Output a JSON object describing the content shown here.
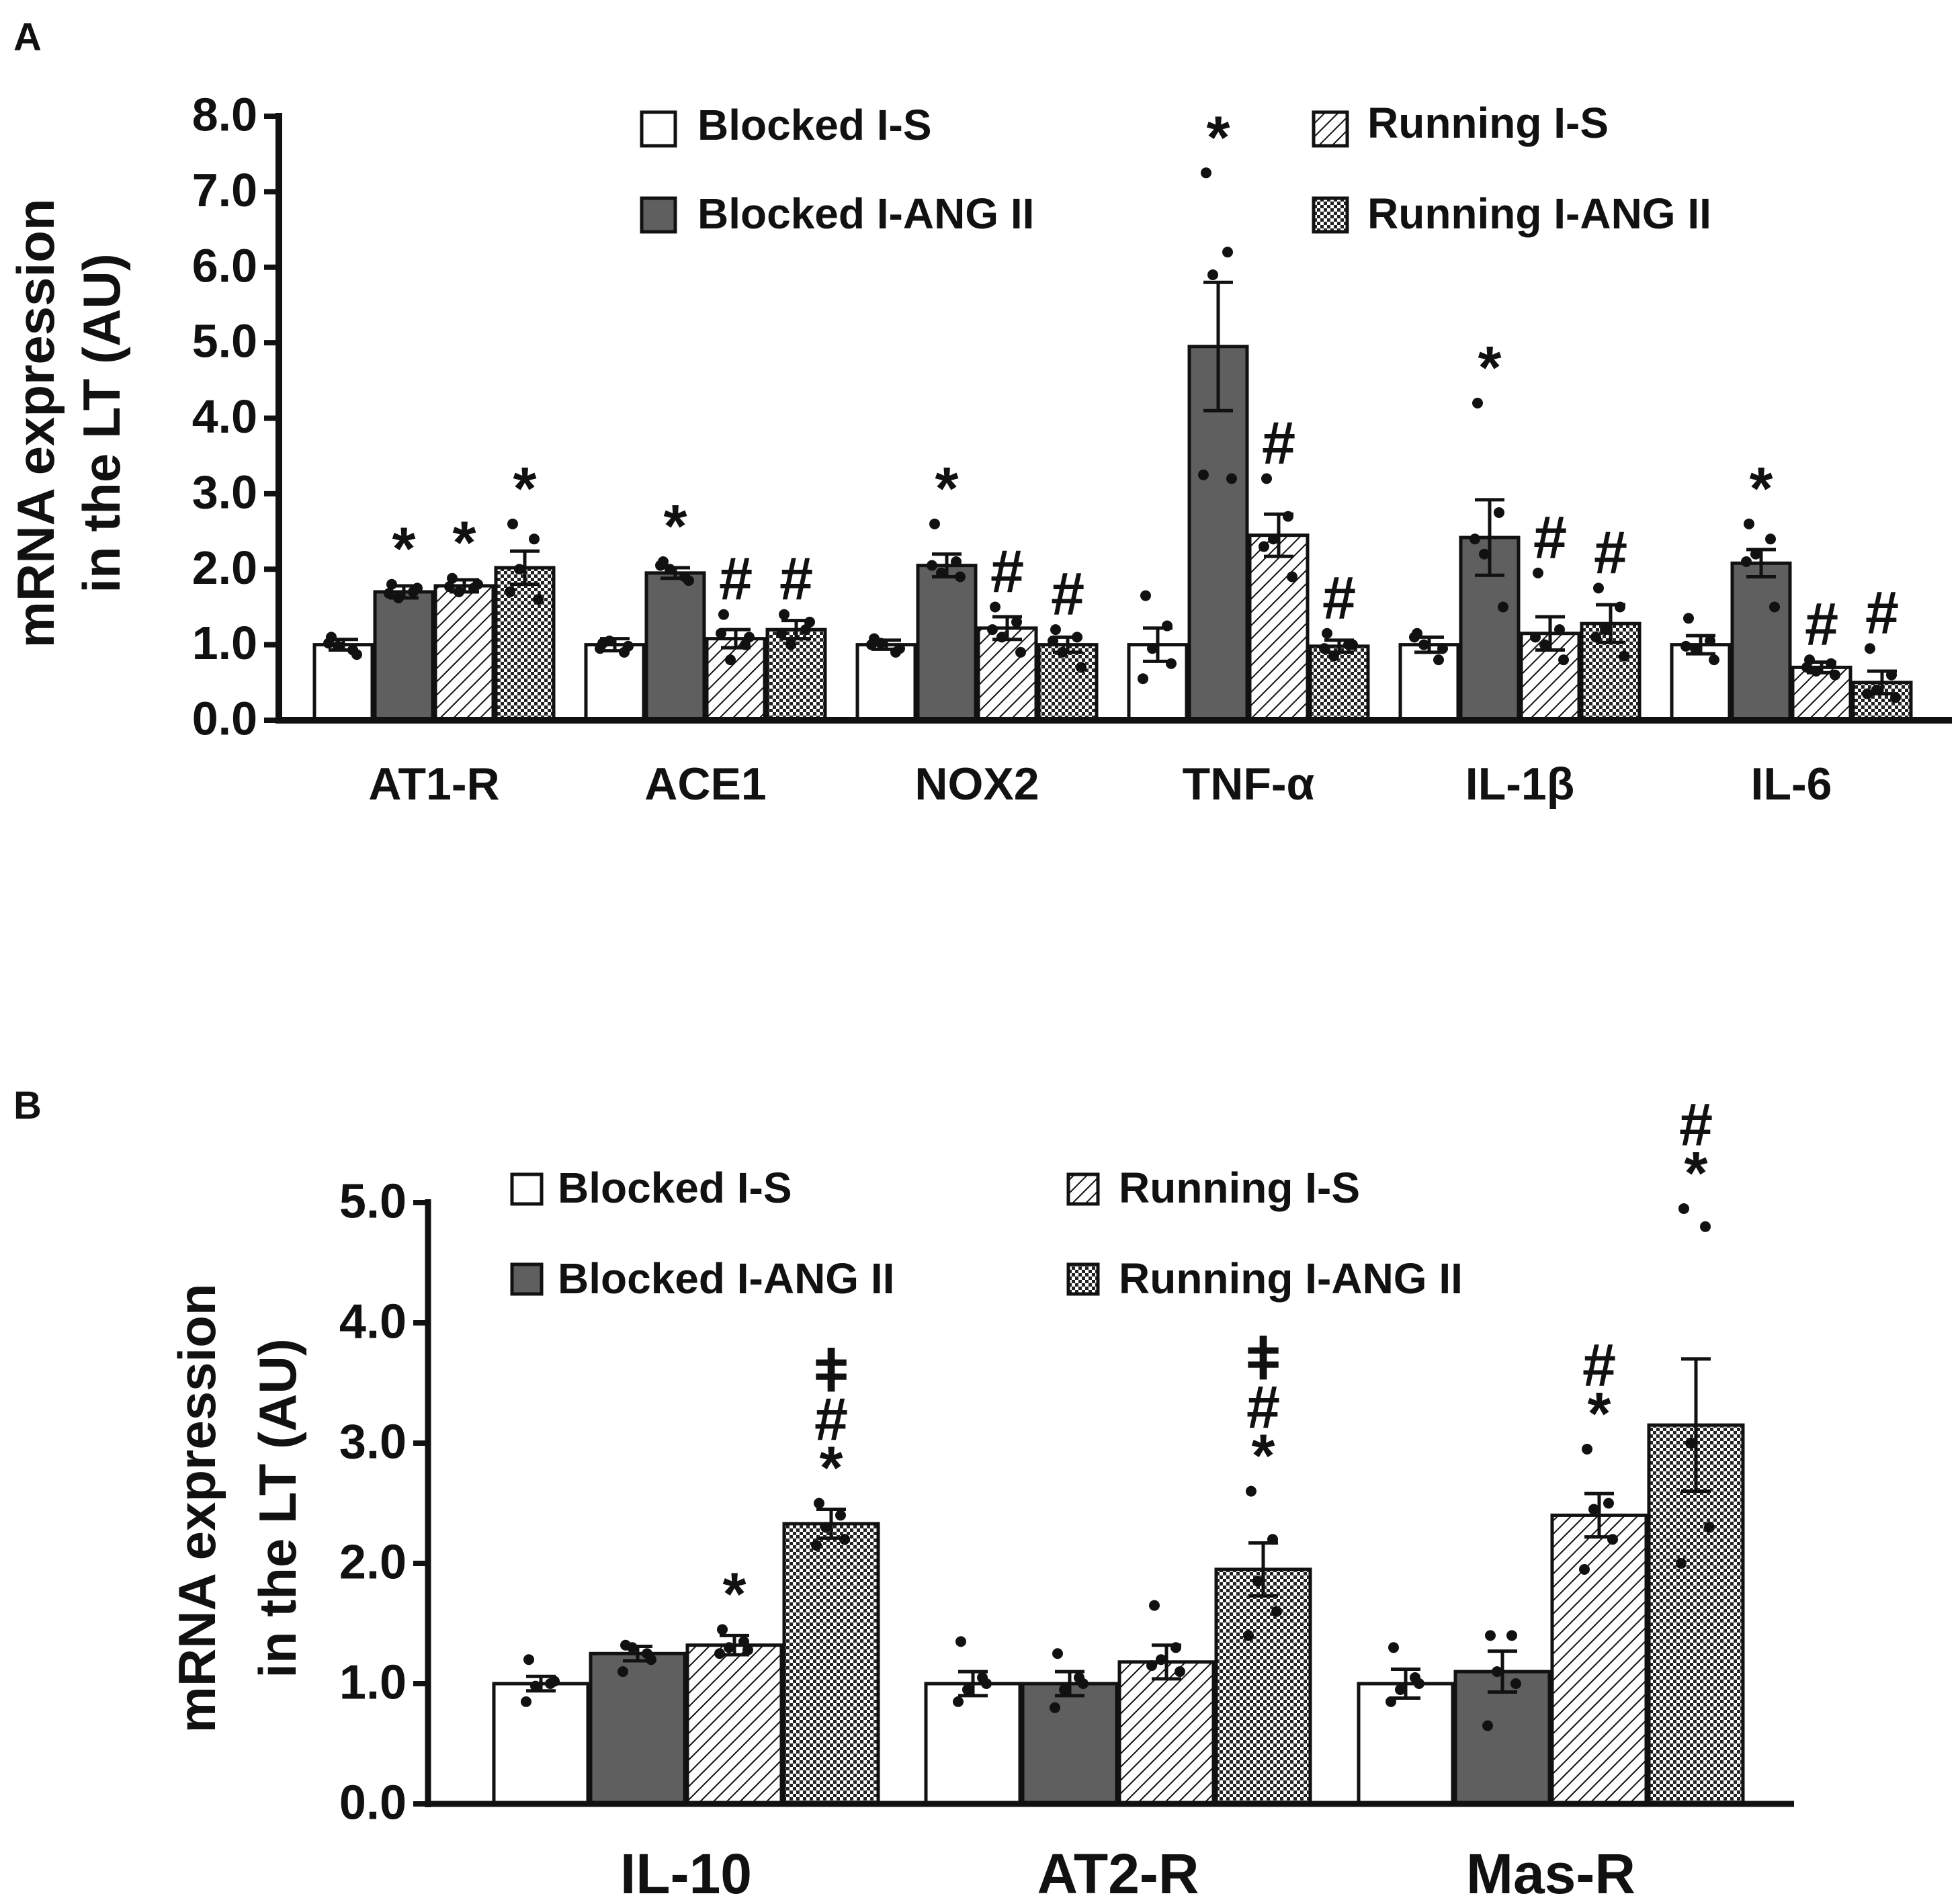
{
  "figure": {
    "description_free": true
  },
  "patterns": {
    "blocked_s": "#ffffff",
    "blocked_ang": "#5f5f5f",
    "running_s": "hatch",
    "running_ang": "crosshatch"
  },
  "chart_data": [
    {
      "panel": "A",
      "type": "bar",
      "ylabel_line1": "mRNA expression",
      "ylabel_line2": "in the LT (AU)",
      "ylim": [
        0,
        8
      ],
      "yticks": [
        "0.0",
        "1.0",
        "2.0",
        "3.0",
        "4.0",
        "5.0",
        "6.0",
        "7.0",
        "8.0"
      ],
      "legend": [
        "Blocked I-S",
        "Running I-S",
        "Blocked I-ANG II",
        "Running I-ANG II"
      ],
      "legend_placement": "top",
      "categories": [
        "AT1-R",
        "ACE1",
        "NOX2",
        "TNF-α",
        "IL-1β",
        "IL-6"
      ],
      "series": [
        {
          "name": "Blocked I-S",
          "style": "blocked_s",
          "values": [
            1.0,
            1.0,
            1.0,
            1.0,
            1.0,
            1.0
          ],
          "errors": [
            0.07,
            0.08,
            0.06,
            0.22,
            0.1,
            0.12
          ],
          "marks": [
            "",
            "",
            "",
            "",
            "",
            ""
          ]
        },
        {
          "name": "Blocked I-ANG II",
          "style": "blocked_ang",
          "values": [
            1.7,
            1.95,
            2.05,
            4.95,
            2.42,
            2.08
          ],
          "errors": [
            0.08,
            0.07,
            0.15,
            0.85,
            0.5,
            0.18
          ],
          "marks": [
            "*",
            "*",
            "*",
            "*",
            "*",
            "*"
          ]
        },
        {
          "name": "Running I-S",
          "style": "running_s",
          "values": [
            1.78,
            1.08,
            1.22,
            2.45,
            1.15,
            0.7
          ],
          "errors": [
            0.08,
            0.12,
            0.15,
            0.28,
            0.22,
            0.07
          ],
          "marks": [
            "*",
            "#",
            "#",
            "#",
            "#",
            "#"
          ]
        },
        {
          "name": "Running I-ANG II",
          "style": "running_ang",
          "values": [
            2.02,
            1.2,
            1.0,
            0.98,
            1.28,
            0.5
          ],
          "errors": [
            0.22,
            0.12,
            0.1,
            0.08,
            0.25,
            0.15
          ],
          "marks": [
            "*",
            "#",
            "#",
            "#",
            "#",
            "#"
          ]
        }
      ],
      "points": [
        [
          [
            1.1,
            0.93,
            0.98,
            0.87,
            1.02
          ],
          [
            1.02,
            0.9,
            1.05,
            0.98,
            0.95
          ],
          [
            1.08,
            0.9,
            1.02,
            0.95,
            1.0
          ],
          [
            1.65,
            1.25,
            0.95,
            0.75,
            0.55
          ],
          [
            1.15,
            0.8,
            1.0,
            0.95,
            1.1
          ],
          [
            1.35,
            1.05,
            0.95,
            0.8,
            0.98
          ]
        ],
        [
          [
            1.8,
            1.7,
            1.62,
            1.75,
            1.68
          ],
          [
            2.1,
            1.9,
            2.0,
            1.85,
            2.05
          ],
          [
            2.6,
            2.1,
            1.95,
            1.9,
            2.05
          ],
          [
            7.25,
            6.2,
            5.9,
            3.2,
            3.25
          ],
          [
            4.2,
            2.75,
            2.2,
            1.5,
            2.4
          ],
          [
            2.6,
            2.4,
            2.2,
            1.5,
            2.1
          ]
        ],
        [
          [
            1.88,
            1.75,
            1.7,
            1.8,
            1.77
          ],
          [
            1.4,
            1.0,
            0.8,
            1.1,
            1.15
          ],
          [
            1.5,
            1.3,
            1.1,
            0.9,
            1.2
          ],
          [
            3.2,
            2.7,
            2.4,
            1.9,
            2.3
          ],
          [
            1.95,
            1.2,
            1.0,
            0.8,
            1.1
          ],
          [
            0.8,
            0.75,
            0.65,
            0.6,
            0.7
          ]
        ],
        [
          [
            2.6,
            2.4,
            2.0,
            1.6,
            1.7
          ],
          [
            1.4,
            1.2,
            1.0,
            1.3,
            1.15
          ],
          [
            1.2,
            1.1,
            0.9,
            0.7,
            1.05
          ],
          [
            1.15,
            1.0,
            0.85,
            1.0,
            0.95
          ],
          [
            1.75,
            1.5,
            1.2,
            0.85,
            1.1
          ],
          [
            0.95,
            0.6,
            0.4,
            0.3,
            0.35
          ]
        ]
      ]
    },
    {
      "panel": "B",
      "type": "bar",
      "ylabel_line1": "mRNA expression",
      "ylabel_line2": "in the LT (AU)",
      "ylim": [
        0,
        5
      ],
      "yticks": [
        "0.0",
        "1.0",
        "2.0",
        "3.0",
        "4.0",
        "5.0"
      ],
      "legend": [
        "Blocked I-S",
        "Running I-S",
        "Blocked I-ANG II",
        "Running I-ANG II"
      ],
      "legend_placement": "top",
      "categories": [
        "IL-10",
        "AT2-R",
        "Mas-R"
      ],
      "series": [
        {
          "name": "Blocked I-S",
          "style": "blocked_s",
          "values": [
            1.0,
            1.0,
            1.0
          ],
          "errors": [
            0.06,
            0.1,
            0.12
          ],
          "marks": [
            "",
            "",
            ""
          ]
        },
        {
          "name": "Blocked I-ANG II",
          "style": "blocked_ang",
          "values": [
            1.25,
            1.0,
            1.1
          ],
          "errors": [
            0.06,
            0.1,
            0.17
          ],
          "marks": [
            "",
            "",
            ""
          ]
        },
        {
          "name": "Running I-S",
          "style": "running_s",
          "values": [
            1.32,
            1.18,
            2.4
          ],
          "errors": [
            0.08,
            0.14,
            0.18
          ],
          "marks": [
            "*",
            "",
            "*\n#"
          ]
        },
        {
          "name": "Running I-ANG II",
          "style": "running_ang",
          "values": [
            2.33,
            1.95,
            3.15
          ],
          "errors": [
            0.12,
            0.22,
            0.55
          ],
          "marks": [
            "*\n#\nǂ",
            "*\n#\nǂ",
            "*\n#"
          ]
        }
      ],
      "points": [
        [
          [
            1.2,
            1.0,
            0.98,
            1.02,
            0.85
          ],
          [
            1.35,
            1.05,
            0.95,
            1.0,
            0.85
          ],
          [
            1.3,
            1.05,
            0.95,
            1.0,
            0.85
          ]
        ],
        [
          [
            1.32,
            1.25,
            1.3,
            1.2,
            1.1
          ],
          [
            1.25,
            1.05,
            0.95,
            1.0,
            0.8
          ],
          [
            1.4,
            1.4,
            1.1,
            1.0,
            0.65
          ]
        ],
        [
          [
            1.45,
            1.35,
            1.3,
            1.28,
            1.25
          ],
          [
            1.65,
            1.3,
            1.2,
            1.1,
            1.15
          ],
          [
            2.95,
            2.5,
            2.45,
            2.2,
            1.95
          ]
        ],
        [
          [
            2.5,
            2.4,
            2.3,
            2.2,
            2.15
          ],
          [
            2.6,
            2.2,
            1.85,
            1.6,
            1.4
          ],
          [
            4.95,
            4.8,
            3.0,
            2.3,
            2.0
          ]
        ]
      ]
    }
  ]
}
